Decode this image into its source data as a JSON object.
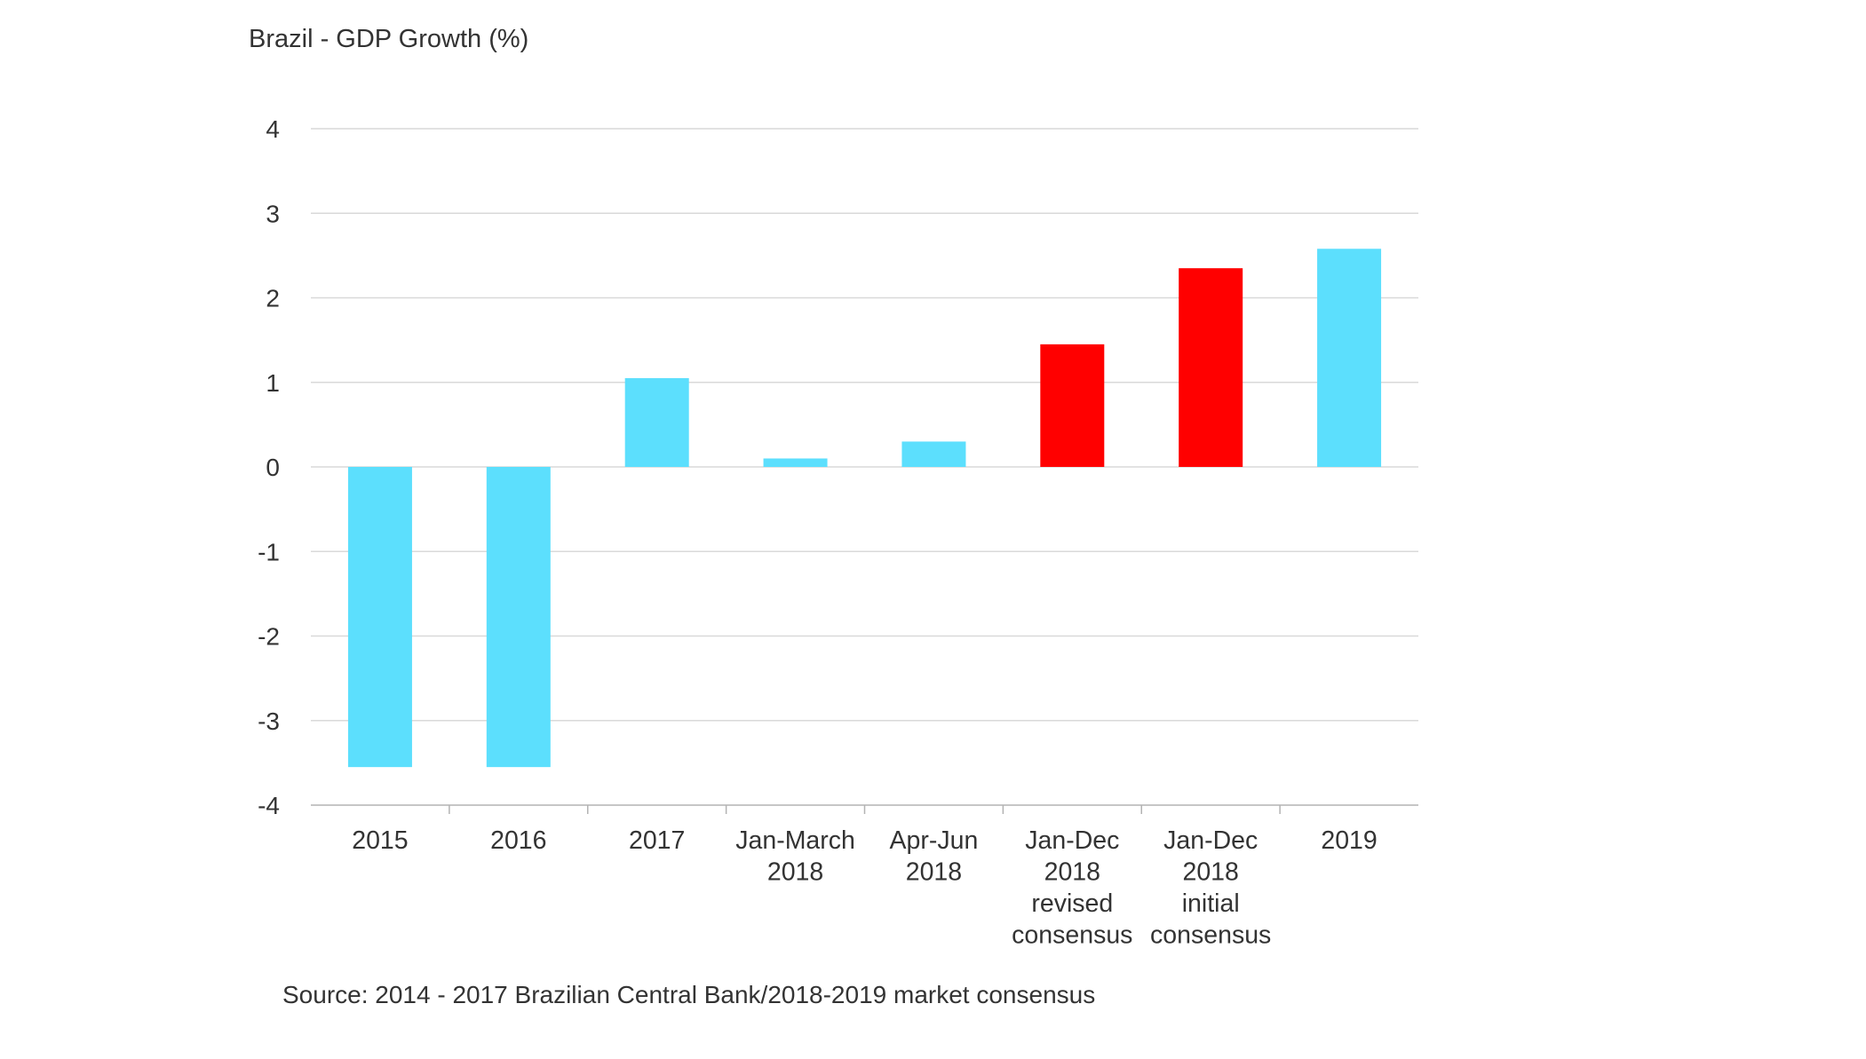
{
  "chart_data": {
    "type": "bar",
    "title": "Brazil - GDP Growth (%)",
    "xlabel": "",
    "ylabel": "",
    "source": "Source: 2014 - 2017 Brazilian Central Bank/2018-2019 market consensus",
    "ylim": [
      -4,
      4
    ],
    "yticks": [
      4,
      3,
      2,
      1,
      0,
      -1,
      -2,
      -3,
      -4
    ],
    "grid": true,
    "legend": "none",
    "categories": [
      [
        "2015"
      ],
      [
        "2016"
      ],
      [
        "2017"
      ],
      [
        "Jan-March",
        "2018"
      ],
      [
        "Apr-Jun",
        "2018"
      ],
      [
        "Jan-Dec",
        "2018",
        "revised",
        "consensus"
      ],
      [
        "Jan-Dec",
        "2018",
        "initial",
        "consensus"
      ],
      [
        "2019"
      ]
    ],
    "values": [
      -3.55,
      -3.55,
      1.05,
      0.1,
      0.3,
      1.45,
      2.35,
      2.58
    ],
    "bar_colors": [
      "#5CDFFD",
      "#5CDFFD",
      "#5CDFFD",
      "#5CDFFD",
      "#5CDFFD",
      "#FF0000",
      "#FF0000",
      "#5CDFFD"
    ],
    "gridline_color": "#D9D9D9",
    "axis_color": "#B3B3B3"
  }
}
